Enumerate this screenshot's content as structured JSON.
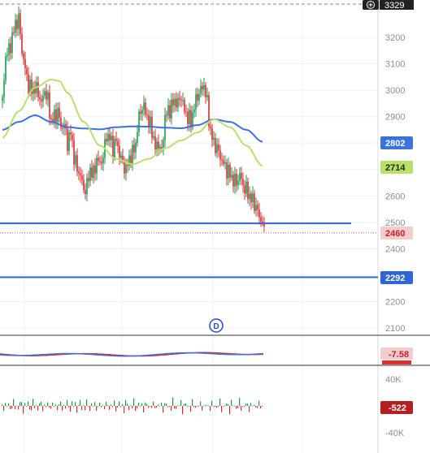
{
  "chart_data": {
    "type": "line",
    "price_axis": {
      "ticks": [
        "3200",
        "3100",
        "3000",
        "2900",
        "2800",
        "2700",
        "2600",
        "2500",
        "2400",
        "2300",
        "2200",
        "2100"
      ],
      "top_value": 3329,
      "bottom_value": 2100,
      "top_label": "3329"
    },
    "value_badges": {
      "ma_blue": "2802",
      "ma_green": "2714",
      "last_price": "2460",
      "hline_lower": "2292"
    },
    "horizontal_lines": [
      2496,
      2292
    ],
    "last_price": 2460,
    "event_marker": "D",
    "price_series": {
      "name": "",
      "x": [
        0,
        4,
        8,
        12,
        16,
        20,
        24,
        28,
        32,
        36,
        40,
        44,
        48,
        52,
        56,
        60,
        64,
        68,
        72,
        76,
        80,
        84,
        88,
        92,
        96,
        100,
        104,
        108,
        112,
        116,
        120,
        124,
        128,
        132,
        136,
        140,
        144,
        148,
        152,
        156,
        160,
        164,
        168,
        172,
        176,
        180,
        184,
        188,
        192,
        196,
        200,
        204,
        208,
        212,
        216,
        220,
        224,
        228,
        232,
        236,
        240,
        244,
        248,
        252,
        256,
        260,
        264,
        268,
        272,
        276,
        280,
        284,
        288,
        292,
        296,
        300,
        304,
        308,
        312,
        316,
        320,
        322
      ],
      "close": [
        2960,
        3130,
        3150,
        3200,
        3250,
        3270,
        3150,
        3080,
        3020,
        3000,
        3010,
        2990,
        2950,
        3000,
        2960,
        2880,
        2900,
        2920,
        2860,
        2870,
        2800,
        2840,
        2750,
        2700,
        2680,
        2620,
        2640,
        2700,
        2680,
        2740,
        2720,
        2750,
        2830,
        2820,
        2780,
        2810,
        2760,
        2720,
        2700,
        2740,
        2760,
        2800,
        2900,
        2940,
        2920,
        2880,
        2850,
        2780,
        2800,
        2760,
        2900,
        2920,
        2940,
        2960,
        2950,
        2980,
        2920,
        2900,
        2880,
        2940,
        2980,
        3000,
        3020,
        2950,
        2840,
        2800,
        2780,
        2750,
        2720,
        2700,
        2680,
        2660,
        2650,
        2680,
        2640,
        2620,
        2600,
        2580,
        2560,
        2520,
        2500,
        2460
      ]
    },
    "moving_averages": [
      {
        "name": "",
        "color": "#3a72e0",
        "x": [
          0,
          20,
          40,
          60,
          80,
          100,
          120,
          140,
          160,
          180,
          200,
          220,
          240,
          260,
          280,
          300,
          320
        ],
        "y": [
          2850,
          2880,
          2905,
          2880,
          2860,
          2855,
          2852,
          2860,
          2863,
          2862,
          2858,
          2856,
          2868,
          2890,
          2880,
          2850,
          2805
        ]
      },
      {
        "name": "",
        "color": "#b9e06a",
        "x": [
          0,
          20,
          40,
          60,
          70,
          80,
          100,
          120,
          140,
          160,
          180,
          200,
          220,
          240,
          260,
          280,
          300,
          320
        ],
        "y": [
          2820,
          2920,
          3010,
          3040,
          3035,
          2990,
          2880,
          2790,
          2740,
          2720,
          2740,
          2780,
          2810,
          2840,
          2890,
          2860,
          2790,
          2714
        ]
      }
    ],
    "oscillator_1": {
      "value_label": "-7.58",
      "color": "#d72f2f",
      "secondary_color": "#3a72e0"
    },
    "oscillator_2": {
      "ticks": [
        "40K",
        "0",
        "-40K"
      ],
      "value_label": "-522",
      "badge_color": "#b51f1f"
    }
  }
}
